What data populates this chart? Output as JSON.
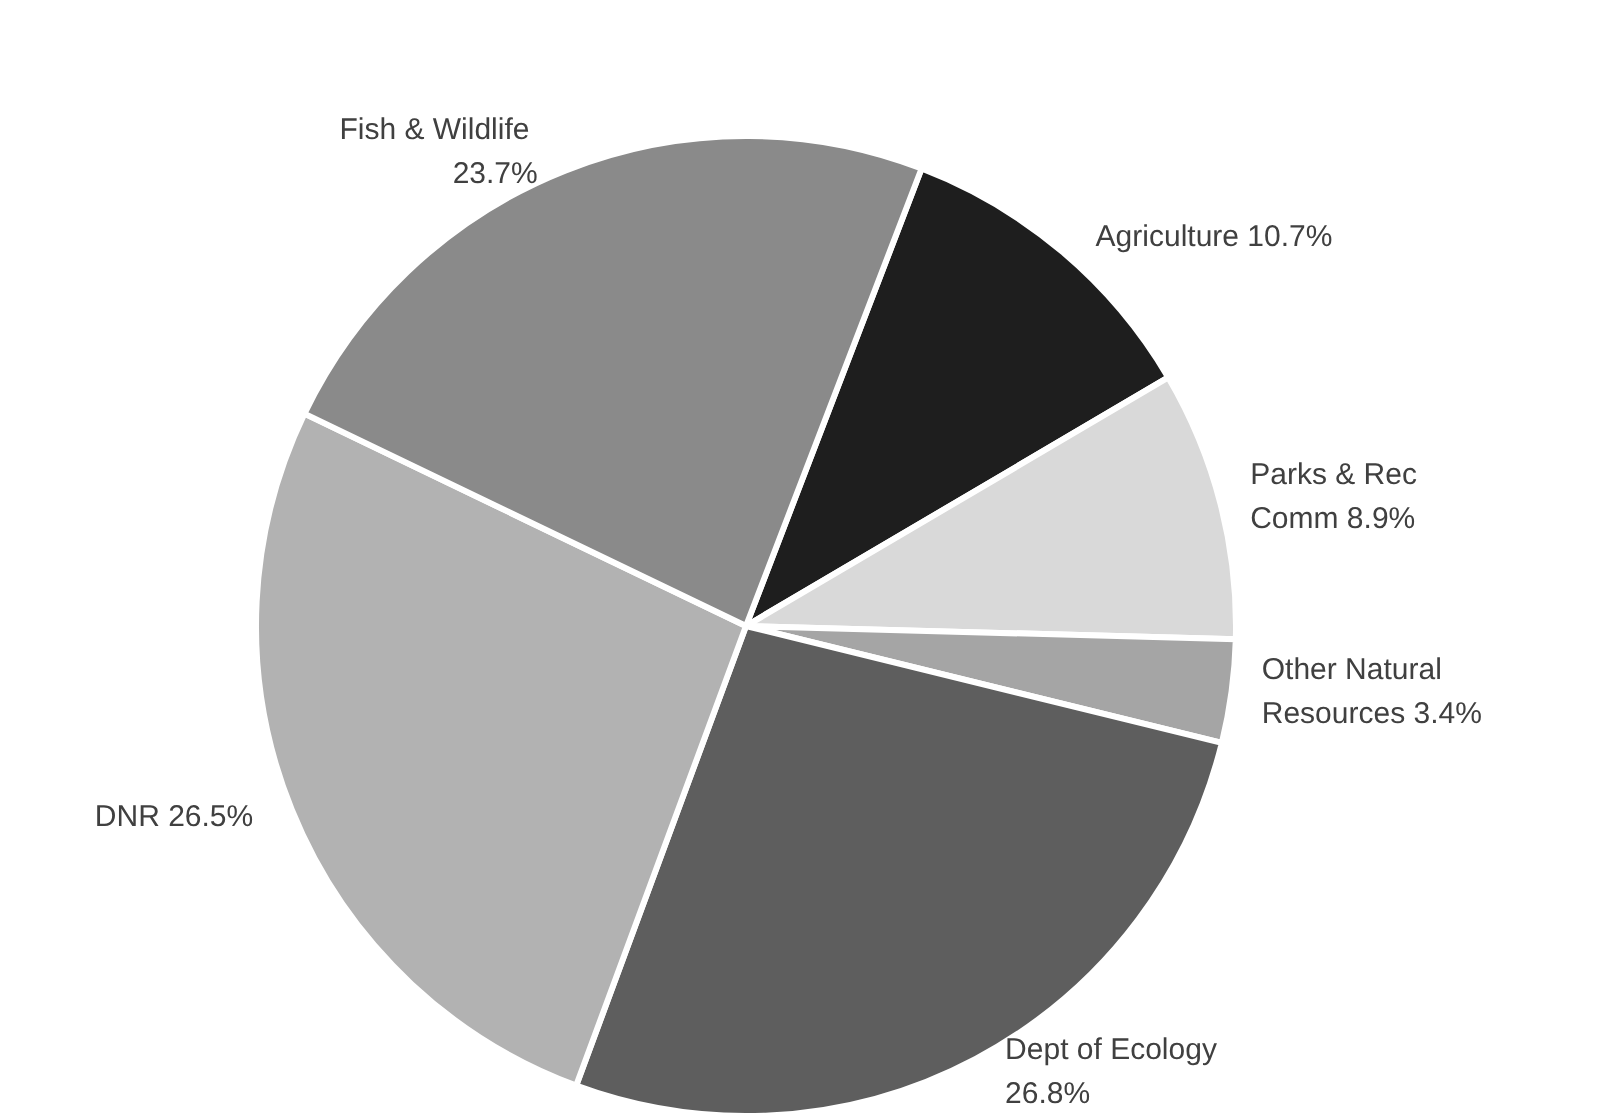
{
  "chart_data": {
    "type": "pie",
    "categories": [
      "Agriculture",
      "Parks & Rec Comm",
      "Other Natural Resources",
      "Dept of Ecology",
      "DNR",
      "Fish & Wildlife"
    ],
    "values": [
      10.7,
      8.9,
      3.4,
      26.8,
      26.5,
      23.7
    ],
    "colors": [
      "#1e1e1e",
      "#d9d9d9",
      "#a5a5a5",
      "#5e5e5e",
      "#b2b2b2",
      "#8a8a8a"
    ],
    "value_labels": [
      "10.7%",
      "8.9%",
      "3.4%",
      "26.8%",
      "26.5%",
      "23.7%"
    ],
    "legend": false
  }
}
